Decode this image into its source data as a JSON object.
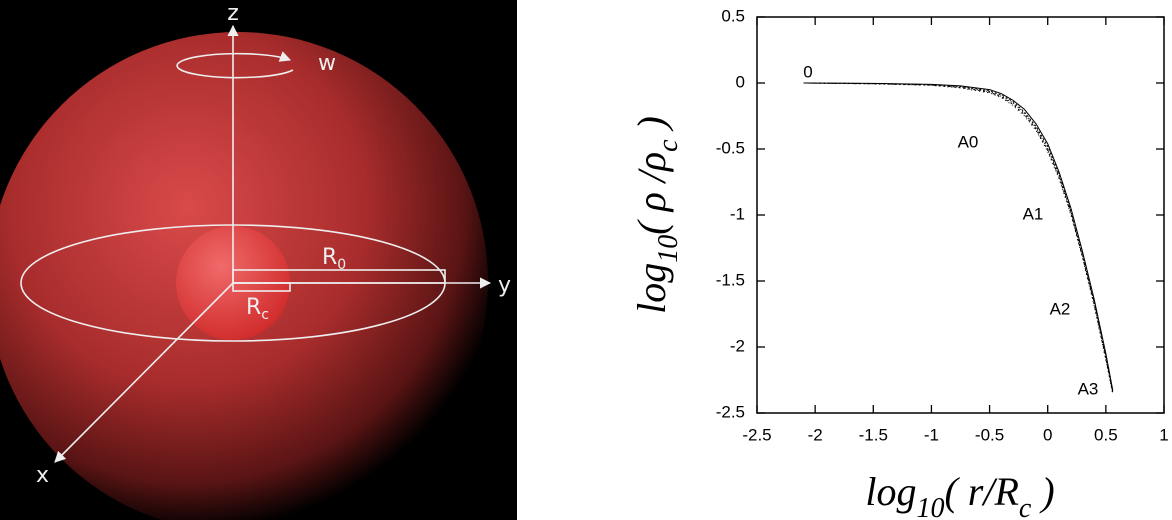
{
  "diagram": {
    "labels": {
      "z": "z",
      "w": "w",
      "y": "y",
      "x": "x",
      "r0": {
        "base": "R",
        "sub": "0"
      },
      "rc": {
        "base": "R",
        "sub": "c"
      }
    }
  },
  "chart_data": {
    "type": "line",
    "xlabel": [
      "log",
      "10",
      "( r/R",
      "c",
      " )"
    ],
    "ylabel": [
      "log",
      "10",
      "( ρ /ρ",
      "c",
      " )"
    ],
    "x": [
      -2.1,
      -1.5,
      -1,
      -0.75,
      -0.5,
      -0.4,
      -0.3,
      -0.2,
      -0.1,
      0,
      0.1,
      0.2,
      0.3,
      0.4,
      0.5,
      0.56
    ],
    "series": [
      {
        "name": "0",
        "color": "#000000",
        "values": [
          0,
          -0.003,
          -0.01,
          -0.022,
          -0.05,
          -0.08,
          -0.13,
          -0.2,
          -0.31,
          -0.46,
          -0.68,
          -0.95,
          -1.28,
          -1.64,
          -2.05,
          -2.33
        ]
      },
      {
        "name": "A0",
        "color": "#000000",
        "values": [
          0,
          -0.004,
          -0.012,
          -0.026,
          -0.06,
          -0.09,
          -0.14,
          -0.22,
          -0.33,
          -0.48,
          -0.7,
          -0.97,
          -1.3,
          -1.66,
          -2.07,
          -2.34
        ]
      },
      {
        "name": "A1",
        "color": "#000000",
        "values": [
          0,
          -0.005,
          -0.014,
          -0.03,
          -0.065,
          -0.1,
          -0.15,
          -0.23,
          -0.34,
          -0.5,
          -0.71,
          -0.98,
          -1.31,
          -1.67,
          -2.08,
          -2.35
        ]
      },
      {
        "name": "A2",
        "color": "#000000",
        "values": [
          0,
          -0.006,
          -0.016,
          -0.034,
          -0.07,
          -0.105,
          -0.16,
          -0.24,
          -0.35,
          -0.51,
          -0.72,
          -0.99,
          -1.32,
          -1.68,
          -2.09,
          -2.35
        ]
      },
      {
        "name": "A3",
        "color": "#000000",
        "values": [
          0,
          -0.007,
          -0.018,
          -0.038,
          -0.075,
          -0.11,
          -0.17,
          -0.25,
          -0.36,
          -0.52,
          -0.73,
          -1.0,
          -1.33,
          -1.69,
          -2.1,
          -2.36
        ]
      }
    ],
    "xlim": [
      -2.5,
      1
    ],
    "ylim": [
      -2.5,
      0.5
    ],
    "xticks": [
      -2.5,
      -2,
      -1.5,
      -1,
      -0.5,
      0,
      0.5,
      1
    ],
    "yticks": [
      0.5,
      0,
      -0.5,
      -1,
      -1.5,
      -2,
      -2.5
    ]
  }
}
